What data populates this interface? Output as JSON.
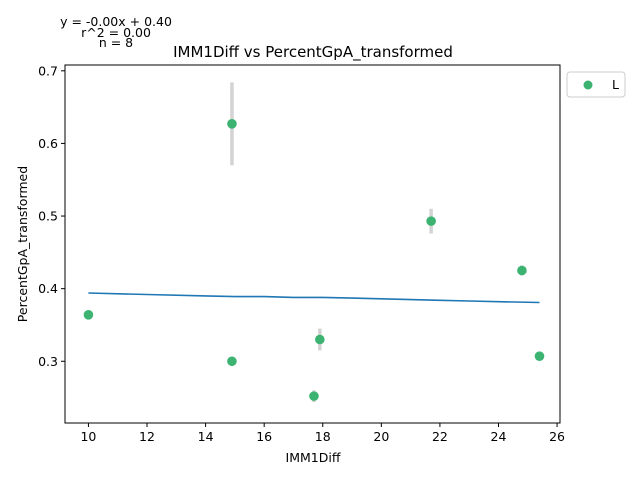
{
  "chart_data": {
    "type": "scatter",
    "title": "IMM1Diff vs PercentGpA_transformed",
    "xlabel": "IMM1Diff",
    "ylabel": "PercentGpA_transformed",
    "xlim": [
      9.2,
      26.1
    ],
    "ylim": [
      0.215,
      0.708
    ],
    "xticks": [
      "10",
      "12",
      "14",
      "16",
      "18",
      "20",
      "22",
      "24",
      "26"
    ],
    "yticks": [
      "0.3",
      "0.4",
      "0.5",
      "0.6",
      "0.7"
    ],
    "annotations": [
      "y = -0.00x + 0.40",
      "r^2 = 0.00",
      "n = 8"
    ],
    "legend": {
      "placement": "outside-right-top",
      "entries": [
        "L"
      ]
    },
    "grid": false,
    "series": [
      {
        "name": "L",
        "color": "#3cb371",
        "points": [
          {
            "x": 10.0,
            "y": 0.364,
            "err": 0.0
          },
          {
            "x": 14.9,
            "y": 0.627,
            "err": 0.057
          },
          {
            "x": 14.9,
            "y": 0.3,
            "err": 0.006
          },
          {
            "x": 17.7,
            "y": 0.252,
            "err": 0.008
          },
          {
            "x": 17.9,
            "y": 0.33,
            "err": 0.015
          },
          {
            "x": 21.7,
            "y": 0.493,
            "err": 0.017
          },
          {
            "x": 24.8,
            "y": 0.425,
            "err": 0.007
          },
          {
            "x": 25.4,
            "y": 0.307,
            "err": 0.0
          }
        ]
      }
    ],
    "fit_line": {
      "color": "#1f77b4",
      "points": [
        [
          10.0,
          0.394
        ],
        [
          12.0,
          0.392
        ],
        [
          14.0,
          0.39
        ],
        [
          15.0,
          0.389
        ],
        [
          16.0,
          0.389
        ],
        [
          17.0,
          0.388
        ],
        [
          18.0,
          0.388
        ],
        [
          19.0,
          0.387
        ],
        [
          20.0,
          0.386
        ],
        [
          21.0,
          0.385
        ],
        [
          22.0,
          0.384
        ],
        [
          23.0,
          0.383
        ],
        [
          24.0,
          0.382
        ],
        [
          25.4,
          0.381
        ]
      ]
    },
    "errorbar_color": "#d3d3d3"
  }
}
